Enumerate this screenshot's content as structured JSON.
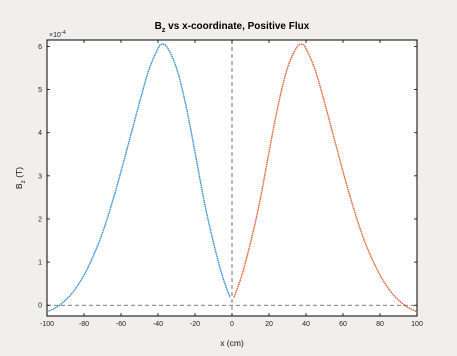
{
  "chart_data": {
    "type": "line",
    "title": {
      "prefix": "B",
      "subscript": "z",
      "suffix": " vs x-coordinate, Positive Flux"
    },
    "xlabel": "x (cm)",
    "ylabel": {
      "prefix": "B",
      "subscript": "z",
      "suffix": " (T)"
    },
    "y_multiplier": {
      "base": "×10",
      "exponent": "-4"
    },
    "xlim": [
      -100,
      100
    ],
    "ylim": [
      -0.25,
      6.15
    ],
    "x_ticks": [
      -100,
      -80,
      -60,
      -40,
      -20,
      0,
      20,
      40,
      60,
      80,
      100
    ],
    "y_ticks": [
      0,
      1,
      2,
      3,
      4,
      5,
      6
    ],
    "grid": false,
    "legend": "none",
    "reference_lines": {
      "horizontal_y": 0,
      "vertical_x": 0,
      "style": "dashed",
      "color": "#555555"
    },
    "series": [
      {
        "color": "#3a8fd0",
        "x": [
          -100,
          -95,
          -90,
          -85,
          -80,
          -75,
          -70,
          -65,
          -60,
          -55,
          -50,
          -45,
          -40,
          -38,
          -35,
          -30,
          -25,
          -20,
          -15,
          -10,
          -5,
          -1
        ],
        "y": [
          -0.15,
          -0.05,
          0.12,
          0.36,
          0.7,
          1.14,
          1.68,
          2.35,
          3.1,
          3.9,
          4.7,
          5.45,
          5.95,
          6.05,
          5.98,
          5.5,
          4.65,
          3.55,
          2.4,
          1.45,
          0.65,
          0.18
        ]
      },
      {
        "color": "#e0653a",
        "x": [
          1,
          5,
          10,
          15,
          20,
          25,
          30,
          35,
          38,
          40,
          45,
          50,
          55,
          60,
          65,
          70,
          75,
          80,
          85,
          90,
          95,
          100
        ],
        "y": [
          0.18,
          0.65,
          1.45,
          2.4,
          3.55,
          4.65,
          5.5,
          5.98,
          6.05,
          5.95,
          5.45,
          4.7,
          3.9,
          3.1,
          2.35,
          1.68,
          1.14,
          0.7,
          0.36,
          0.12,
          -0.05,
          -0.15
        ]
      }
    ]
  }
}
